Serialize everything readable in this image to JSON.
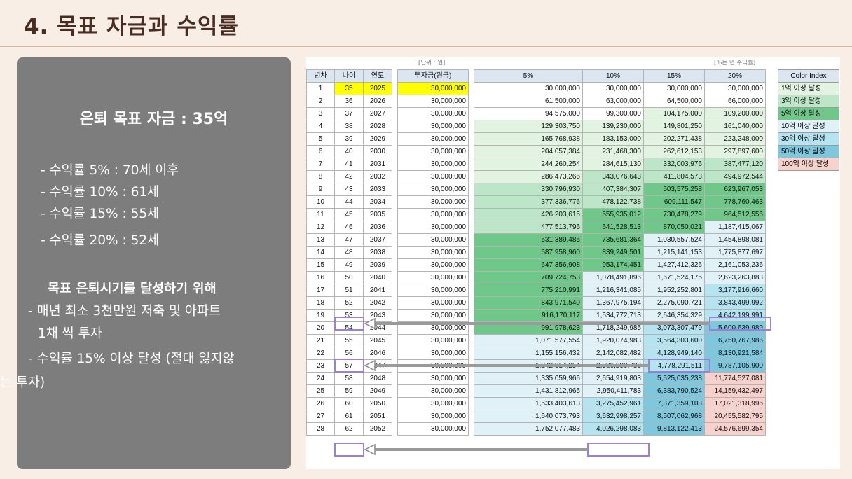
{
  "title": "4. 목표 자금과 수익률",
  "panel": {
    "heading": "은퇴 목표 자금 : 35억",
    "rates": [
      "- 수익률   5% : 70세 이후",
      "- 수익률 10% : 61세",
      "- 수익률 15% : 55세",
      "- 수익률 20% : 52세"
    ],
    "sub_heading": "목표 은퇴시기를 달성하기 위해",
    "plan_lines": [
      "- 매년 최소 3천만원 저축 및 아파트",
      "1채 씩 투자",
      "- 수익률 15% 이상 달성 (절대 잃지않",
      "는 투자)"
    ]
  },
  "sheet": {
    "unit_label": "[단위 : 원]",
    "rate_label": "[%는 년 수익률]",
    "headers": [
      "년차",
      "나이",
      "연도",
      "투자금(원금)",
      "5%",
      "10%",
      "15%",
      "20%"
    ],
    "color_index_header": "Color Index",
    "color_index": [
      {
        "label": "1억 이상 달성",
        "color": "#e2f3e2"
      },
      {
        "label": "3억 이상 달성",
        "color": "#bde6c8"
      },
      {
        "label": "5억 이상 달성",
        "color": "#6fc88a"
      },
      {
        "label": "10억 이상 달성",
        "color": "#e0f1f8"
      },
      {
        "label": "30억 이상 달성",
        "color": "#b6e3f0"
      },
      {
        "label": "50억 이상 달성",
        "color": "#7fc7dc"
      },
      {
        "label": "100억 이상 달성",
        "color": "#f7d1cb"
      }
    ],
    "rows": [
      [
        "1",
        "35",
        "2025",
        "30,000,000",
        "30,000,000",
        "30,000,000",
        "30,000,000",
        "30,000,000"
      ],
      [
        "2",
        "36",
        "2026",
        "30,000,000",
        "61,500,000",
        "63,000,000",
        "64,500,000",
        "66,000,000"
      ],
      [
        "3",
        "37",
        "2027",
        "30,000,000",
        "94,575,000",
        "99,300,000",
        "104,175,000",
        "109,200,000"
      ],
      [
        "4",
        "38",
        "2028",
        "30,000,000",
        "129,303,750",
        "139,230,000",
        "149,801,250",
        "161,040,000"
      ],
      [
        "5",
        "39",
        "2029",
        "30,000,000",
        "165,768,938",
        "183,153,000",
        "202,271,438",
        "223,248,000"
      ],
      [
        "6",
        "40",
        "2030",
        "30,000,000",
        "204,057,384",
        "231,468,300",
        "262,612,153",
        "297,897,600"
      ],
      [
        "7",
        "41",
        "2031",
        "30,000,000",
        "244,260,254",
        "284,615,130",
        "332,003,976",
        "387,477,120"
      ],
      [
        "8",
        "42",
        "2032",
        "30,000,000",
        "286,473,266",
        "343,076,643",
        "411,804,573",
        "494,972,544"
      ],
      [
        "9",
        "43",
        "2033",
        "30,000,000",
        "330,796,930",
        "407,384,307",
        "503,575,258",
        "623,967,053"
      ],
      [
        "10",
        "44",
        "2034",
        "30,000,000",
        "377,336,776",
        "478,122,738",
        "609,111,547",
        "778,760,463"
      ],
      [
        "11",
        "45",
        "2035",
        "30,000,000",
        "426,203,615",
        "555,935,012",
        "730,478,279",
        "964,512,556"
      ],
      [
        "12",
        "46",
        "2036",
        "30,000,000",
        "477,513,796",
        "641,528,513",
        "870,050,021",
        "1,187,415,067"
      ],
      [
        "13",
        "47",
        "2037",
        "30,000,000",
        "531,389,485",
        "735,681,364",
        "1,030,557,524",
        "1,454,898,081"
      ],
      [
        "14",
        "48",
        "2038",
        "30,000,000",
        "587,958,960",
        "839,249,501",
        "1,215,141,153",
        "1,775,877,697"
      ],
      [
        "15",
        "49",
        "2039",
        "30,000,000",
        "647,356,908",
        "953,174,451",
        "1,427,412,326",
        "2,161,053,236"
      ],
      [
        "16",
        "50",
        "2040",
        "30,000,000",
        "709,724,753",
        "1,078,491,896",
        "1,671,524,175",
        "2,623,263,883"
      ],
      [
        "17",
        "51",
        "2041",
        "30,000,000",
        "775,210,991",
        "1,216,341,085",
        "1,952,252,801",
        "3,177,916,660"
      ],
      [
        "18",
        "52",
        "2042",
        "30,000,000",
        "843,971,540",
        "1,367,975,194",
        "2,275,090,721",
        "3,843,499,992"
      ],
      [
        "19",
        "53",
        "2043",
        "30,000,000",
        "916,170,117",
        "1,534,772,713",
        "2,646,354,329",
        "4,642,199,991"
      ],
      [
        "20",
        "54",
        "2044",
        "30,000,000",
        "991,978,623",
        "1,718,249,985",
        "3,073,307,479",
        "5,600,639,989"
      ],
      [
        "21",
        "55",
        "2045",
        "30,000,000",
        "1,071,577,554",
        "1,920,074,983",
        "3,564,303,600",
        "6,750,767,986"
      ],
      [
        "22",
        "56",
        "2046",
        "30,000,000",
        "1,155,156,432",
        "2,142,082,482",
        "4,128,949,140",
        "8,130,921,584"
      ],
      [
        "23",
        "57",
        "2047",
        "30,000,000",
        "1,242,914,254",
        "2,386,290,730",
        "4,778,291,511",
        "9,787,105,900"
      ],
      [
        "24",
        "58",
        "2048",
        "30,000,000",
        "1,335,059,966",
        "2,654,919,803",
        "5,525,035,238",
        "11,774,527,081"
      ],
      [
        "25",
        "59",
        "2049",
        "30,000,000",
        "1,431,812,965",
        "2,950,411,783",
        "6,383,790,524",
        "14,159,432,497"
      ],
      [
        "26",
        "60",
        "2050",
        "30,000,000",
        "1,533,403,613",
        "3,275,452,961",
        "7,371,359,103",
        "17,021,318,996"
      ],
      [
        "27",
        "61",
        "2051",
        "30,000,000",
        "1,640,073,793",
        "3,632,998,257",
        "8,507,062,968",
        "20,455,582,795"
      ],
      [
        "28",
        "62",
        "2052",
        "30,000,000",
        "1,752,077,483",
        "4,026,298,083",
        "9,813,122,413",
        "24,576,699,354"
      ]
    ]
  }
}
